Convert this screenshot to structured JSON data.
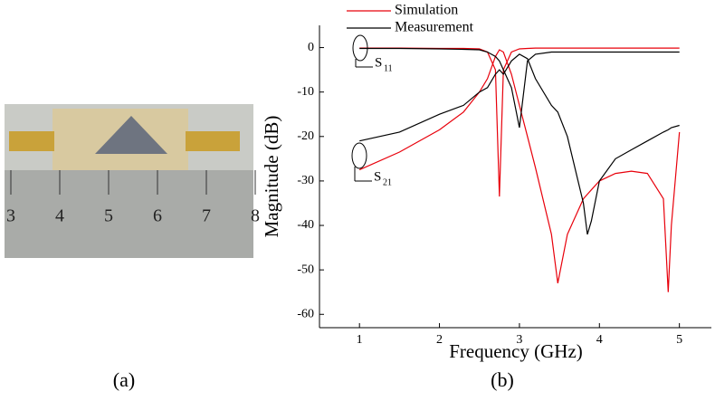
{
  "chart_data": {
    "type": "line",
    "x_label": "Frequency (GHz)",
    "y_label": "Magnitude (dB)",
    "x": [
      1.0,
      1.5,
      2.0,
      2.3,
      2.5,
      2.6,
      2.7,
      2.75,
      2.8,
      2.9,
      3.0,
      3.1,
      3.2,
      3.4,
      3.48,
      3.6,
      3.8,
      3.85,
      3.9,
      4.0,
      4.2,
      4.4,
      4.6,
      4.8,
      4.86,
      4.9,
      5.0
    ],
    "series": [
      {
        "name": "Simulation",
        "color": "#e8000b",
        "s21_values": [
          -27.5,
          -23.5,
          -18.5,
          -14.5,
          -10,
          -7,
          -2,
          -0.5,
          -1,
          -6,
          -13,
          -20,
          -27,
          -42,
          -53,
          -42,
          -34,
          -33,
          -32,
          -30,
          -28.3,
          -27.8,
          -28.3,
          -34,
          -55,
          -40,
          -19
        ],
        "s11_values": [
          -0.1,
          -0.1,
          -0.2,
          -0.2,
          -0.3,
          -1,
          -5,
          -33.5,
          -5,
          -1,
          -0.3,
          -0.2,
          -0.1,
          -0.1,
          -0.1,
          -0.1,
          -0.1,
          -0.1,
          -0.1,
          -0.1,
          -0.1,
          -0.1,
          -0.1,
          -0.1,
          -0.1,
          -0.1,
          -0.1
        ]
      },
      {
        "name": "Measurement",
        "color": "#000000",
        "s21_values": [
          -21,
          -19,
          -15,
          -13,
          -10,
          -9,
          -6,
          -5,
          -6,
          -3,
          -1.5,
          -2.5,
          -7,
          -13,
          -14.5,
          -20,
          -35,
          -42,
          -39,
          -30,
          -25,
          -23,
          -21,
          -19,
          -18.5,
          -18,
          -17.5
        ],
        "s11_values": [
          -0.2,
          -0.2,
          -0.3,
          -0.4,
          -0.5,
          -1,
          -2,
          -3,
          -5,
          -9,
          -18,
          -3,
          -1.5,
          -1,
          -1,
          -1,
          -1,
          -1,
          -1,
          -1,
          -1,
          -1,
          -1,
          -1,
          -1,
          -1,
          -1
        ]
      }
    ],
    "annotations": [
      {
        "text": "S",
        "sub": "11"
      },
      {
        "text": "S",
        "sub": "21"
      }
    ],
    "xlim": [
      0.5,
      5.4
    ],
    "ylim": [
      -63,
      5
    ],
    "xticks": [
      1,
      2,
      3,
      4,
      5
    ],
    "yticks": [
      0,
      -10,
      -20,
      -30,
      -40,
      -50,
      -60
    ]
  },
  "photo": {
    "ruler_labels": [
      "3",
      "4",
      "5",
      "6",
      "7",
      "8"
    ]
  },
  "captions": [
    "(a)",
    "(b)"
  ]
}
